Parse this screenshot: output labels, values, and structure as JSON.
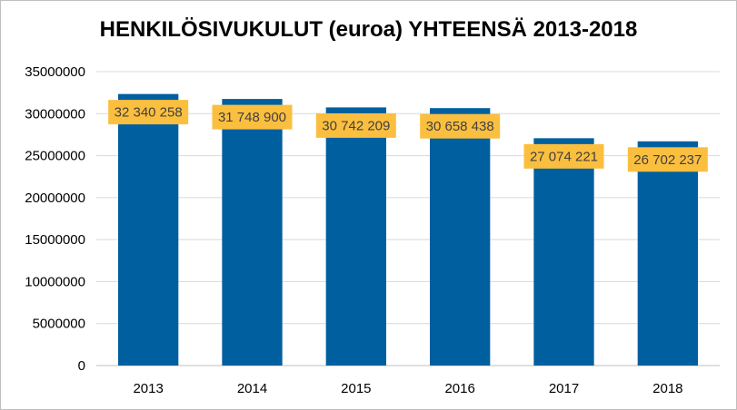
{
  "chart_data": {
    "type": "bar",
    "title": "HENKILÖSIVUKULUT (euroa) YHTEENSÄ 2013-2018",
    "categories": [
      "2013",
      "2014",
      "2015",
      "2016",
      "2017",
      "2018"
    ],
    "values": [
      32340258,
      31748900,
      30742209,
      30658438,
      27074221,
      26702237
    ],
    "data_labels": [
      "32 340 258",
      "31 748 900",
      "30 742 209",
      "30 658 438",
      "27 074 221",
      "26 702 237"
    ],
    "ylim": [
      0,
      35000000
    ],
    "yticks": [
      "0",
      "5000000",
      "10000000",
      "15000000",
      "20000000",
      "25000000",
      "30000000",
      "35000000"
    ],
    "grid": true,
    "legend": "none",
    "colors": {
      "bar": "#005f9e",
      "label_bg": "#fbbf3f",
      "grid": "#d9d9d9"
    }
  }
}
